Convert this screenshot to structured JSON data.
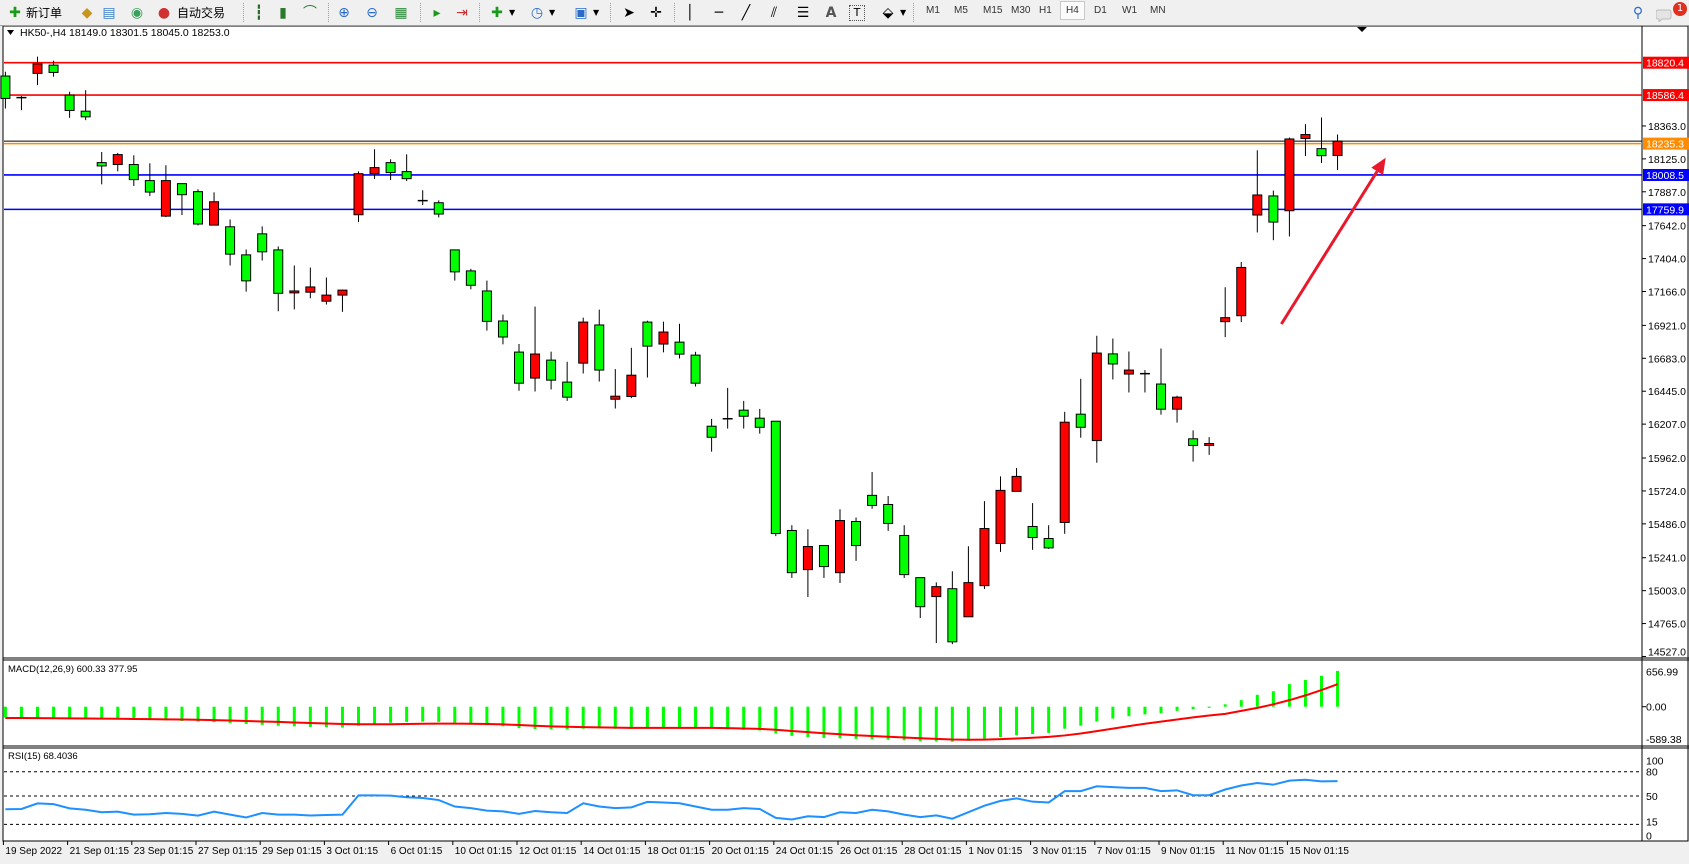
{
  "toolbar": {
    "new_order_label": "新订单",
    "auto_trading_label": "自动交易",
    "icons": [
      "new-order-icon",
      "market-watch-icon",
      "data-window-icon",
      "navigator-icon",
      "auto-trading-icon",
      "bar-chart-icon",
      "candlestick-icon",
      "line-chart-icon",
      "zoom-in-icon",
      "zoom-out-icon",
      "tile-windows-icon",
      "auto-scroll-icon",
      "chart-shift-icon",
      "indicators-icon",
      "periods-icon",
      "templates-icon",
      "cursor-icon",
      "crosshair-icon",
      "vertical-line-icon",
      "horizontal-line-icon",
      "trendline-icon",
      "equidistant-channel-icon",
      "fibonacci-icon",
      "text-icon",
      "text-label-icon",
      "arrows-icon",
      "search-icon",
      "chat-icon"
    ],
    "timeframes": [
      "M1",
      "M5",
      "M15",
      "M30",
      "H1",
      "H4",
      "D1",
      "W1",
      "MN"
    ],
    "active_timeframe": "H4",
    "text_tool_label": "A",
    "notification_count": "1"
  },
  "chart": {
    "header": "HK50-,H4  18149.0 18301.5 18045.0 18253.0",
    "macd_label": "MACD(12,26,9) 600.33 377.95",
    "rsi_label": "RSI(15) 68.4036"
  },
  "chart_data": [
    {
      "type": "candlestick",
      "symbol": "HK50-",
      "timeframe": "H4",
      "ohlc_order": [
        "open",
        "high",
        "low",
        "close"
      ],
      "up_color": "#ff0000",
      "down_color": "#00ff00",
      "candles": [
        [
          18724,
          18755,
          18489,
          18562
        ],
        [
          18568,
          18579,
          18477,
          18565
        ],
        [
          18743,
          18864,
          18658,
          18811
        ],
        [
          18803,
          18835,
          18719,
          18750
        ],
        [
          18586,
          18610,
          18422,
          18475
        ],
        [
          18470,
          18622,
          18405,
          18429
        ],
        [
          18098,
          18175,
          17941,
          18074
        ],
        [
          18084,
          18168,
          18035,
          18156
        ],
        [
          18084,
          18151,
          17929,
          17975
        ],
        [
          17968,
          18093,
          17856,
          17885
        ],
        [
          17711,
          18079,
          17704,
          17968
        ],
        [
          17946,
          17946,
          17719,
          17866
        ],
        [
          17888,
          17905,
          17644,
          17654
        ],
        [
          17646,
          17883,
          17646,
          17815
        ],
        [
          17634,
          17687,
          17354,
          17436
        ],
        [
          17431,
          17470,
          17165,
          17243
        ],
        [
          17583,
          17637,
          17390,
          17453
        ],
        [
          17467,
          17492,
          17023,
          17153
        ],
        [
          17156,
          17354,
          17037,
          17170
        ],
        [
          17161,
          17339,
          17117,
          17199
        ],
        [
          17096,
          17267,
          17072,
          17140
        ],
        [
          17140,
          17180,
          17019,
          17176
        ],
        [
          17721,
          18035,
          17668,
          18018
        ],
        [
          18018,
          18195,
          17980,
          18062
        ],
        [
          18098,
          18122,
          17972,
          18026
        ],
        [
          18033,
          18158,
          17965,
          17982
        ],
        [
          17823,
          17898,
          17791,
          17822
        ],
        [
          17808,
          17825,
          17702,
          17726
        ],
        [
          17467,
          17467,
          17245,
          17308
        ],
        [
          17315,
          17330,
          17182,
          17211
        ],
        [
          17170,
          17245,
          16883,
          16950
        ],
        [
          16953,
          16999,
          16784,
          16837
        ],
        [
          16728,
          16786,
          16448,
          16503
        ],
        [
          16540,
          17057,
          16443,
          16714
        ],
        [
          16670,
          16731,
          16458,
          16525
        ],
        [
          16511,
          16658,
          16375,
          16402
        ],
        [
          16648,
          16977,
          16573,
          16945
        ],
        [
          16924,
          17035,
          16515,
          16598
        ],
        [
          16387,
          16605,
          16320,
          16409
        ],
        [
          16407,
          16759,
          16395,
          16561
        ],
        [
          16945,
          16955,
          16544,
          16771
        ],
        [
          16786,
          16948,
          16726,
          16873
        ],
        [
          16800,
          16933,
          16682,
          16713
        ],
        [
          16706,
          16730,
          16479,
          16503
        ],
        [
          16192,
          16245,
          16008,
          16112
        ],
        [
          16246,
          16469,
          16175,
          16244
        ],
        [
          16308,
          16375,
          16175,
          16264
        ],
        [
          16250,
          16317,
          16138,
          16184
        ],
        [
          16228,
          16228,
          15397,
          15416
        ],
        [
          15438,
          15476,
          15095,
          15133
        ],
        [
          15155,
          15447,
          14957,
          15322
        ],
        [
          15329,
          15329,
          15095,
          15177
        ],
        [
          15133,
          15592,
          15058,
          15510
        ],
        [
          15503,
          15532,
          15218,
          15329
        ],
        [
          15692,
          15861,
          15595,
          15619
        ],
        [
          15626,
          15687,
          15435,
          15489
        ],
        [
          15402,
          15476,
          15095,
          15119
        ],
        [
          15097,
          15097,
          14805,
          14887
        ],
        [
          14960,
          15063,
          14624,
          15032
        ],
        [
          15017,
          15143,
          14616,
          14633
        ],
        [
          14814,
          15324,
          14814,
          15061
        ],
        [
          15039,
          15650,
          15015,
          15452
        ],
        [
          15344,
          15829,
          15283,
          15728
        ],
        [
          15721,
          15890,
          15721,
          15829
        ],
        [
          15467,
          15636,
          15298,
          15387
        ],
        [
          15380,
          15476,
          15305,
          15312
        ],
        [
          15496,
          16296,
          15414,
          16221
        ],
        [
          16279,
          16535,
          16109,
          16184
        ],
        [
          16088,
          16846,
          15928,
          16721
        ],
        [
          16715,
          16826,
          16530,
          16642
        ],
        [
          16569,
          16732,
          16436,
          16598
        ],
        [
          16572,
          16598,
          16436,
          16570
        ],
        [
          16497,
          16754,
          16276,
          16315
        ],
        [
          16315,
          16412,
          16218,
          16402
        ],
        [
          16101,
          16162,
          15936,
          16053
        ],
        [
          16053,
          16113,
          15985,
          16067
        ],
        [
          16948,
          17197,
          16836,
          16977
        ],
        [
          16991,
          17379,
          16945,
          17340
        ],
        [
          17719,
          18187,
          17593,
          17864
        ],
        [
          17857,
          17896,
          17537,
          17668
        ],
        [
          17750,
          18279,
          17564,
          18269
        ],
        [
          18272,
          18376,
          18146,
          18301
        ],
        [
          18199,
          18424,
          18095,
          18148
        ],
        [
          18149,
          18301.5,
          18045,
          18253
        ]
      ],
      "ylim": [
        14527.0,
        18820.4
      ],
      "y_ticks": [
        "18363.0",
        "18125.0",
        "17887.0",
        "17642.0",
        "17404.0",
        "17166.0",
        "16921.0",
        "16683.0",
        "16445.0",
        "16207.0",
        "15962.0",
        "15724.0",
        "15486.0",
        "15241.0",
        "15003.0",
        "14765.0",
        "14527.0"
      ],
      "x_ticks": [
        {
          "index": 0,
          "label": "19 Sep 2022"
        },
        {
          "index": 4,
          "label": "21 Sep 01:15"
        },
        {
          "index": 8,
          "label": "23 Sep 01:15"
        },
        {
          "index": 12,
          "label": "27 Sep 01:15"
        },
        {
          "index": 16,
          "label": "29 Sep 01:15"
        },
        {
          "index": 20,
          "label": "3 Oct 01:15"
        },
        {
          "index": 24,
          "label": "6 Oct 01:15"
        },
        {
          "index": 28,
          "label": "10 Oct 01:15"
        },
        {
          "index": 32,
          "label": "12 Oct 01:15"
        },
        {
          "index": 36,
          "label": "14 Oct 01:15"
        },
        {
          "index": 40,
          "label": "18 Oct 01:15"
        },
        {
          "index": 44,
          "label": "20 Oct 01:15"
        },
        {
          "index": 48,
          "label": "24 Oct 01:15"
        },
        {
          "index": 52,
          "label": "26 Oct 01:15"
        },
        {
          "index": 56,
          "label": "28 Oct 01:15"
        },
        {
          "index": 60,
          "label": "1 Nov 01:15"
        },
        {
          "index": 64,
          "label": "3 Nov 01:15"
        },
        {
          "index": 68,
          "label": "7 Nov 01:15"
        },
        {
          "index": 72,
          "label": "9 Nov 01:15"
        },
        {
          "index": 76,
          "label": "11 Nov 01:15"
        },
        {
          "index": 80,
          "label": "15 Nov 01:15"
        }
      ],
      "horizontal_lines": [
        {
          "price": 18820.4,
          "label": "18820.4",
          "color": "#ff0000"
        },
        {
          "price": 18586.4,
          "label": "18586.4",
          "color": "#ff0000"
        },
        {
          "price": 18253.0,
          "label": "",
          "color": "#000000"
        },
        {
          "price": 18235.3,
          "label": "18235.3",
          "color": "#ff8c00"
        },
        {
          "price": 18008.5,
          "label": "18008.5",
          "color": "#0000ff"
        },
        {
          "price": 17759.9,
          "label": "17759.9",
          "color": "#0000ff"
        }
      ],
      "arrow": {
        "from": {
          "index": 79.5,
          "price": 16931
        },
        "to": {
          "index": 86.0,
          "price": 18133
        },
        "color": "#e8192c"
      },
      "grid": false
    },
    {
      "type": "bar",
      "indicator": "MACD(12,26,9)",
      "histogram_color": "#00ff00",
      "signal_color": "#ff0000",
      "ylim": [
        -589.38,
        656.99
      ],
      "y_ticks": [
        "656.99",
        "0.00",
        "-589.38"
      ],
      "macd": [
        -180,
        -185,
        -190,
        -190,
        -200,
        -205,
        -210,
        -215,
        -220,
        -225,
        -230,
        -240,
        -250,
        -260,
        -275,
        -290,
        -305,
        -320,
        -330,
        -340,
        -345,
        -350,
        -320,
        -290,
        -270,
        -255,
        -250,
        -255,
        -270,
        -290,
        -310,
        -330,
        -360,
        -375,
        -380,
        -385,
        -370,
        -365,
        -370,
        -370,
        -360,
        -350,
        -345,
        -350,
        -360,
        -380,
        -390,
        -400,
        -450,
        -490,
        -510,
        -525,
        -530,
        -540,
        -545,
        -555,
        -565,
        -580,
        -585,
        -589,
        -570,
        -540,
        -510,
        -480,
        -460,
        -440,
        -370,
        -320,
        -250,
        -200,
        -160,
        -130,
        -110,
        -70,
        -40,
        -20,
        40,
        110,
        200,
        260,
        380,
        450,
        520,
        600.33
      ],
      "signal": [
        -190,
        -190,
        -192,
        -194,
        -196,
        -198,
        -200,
        -203,
        -206,
        -209,
        -212,
        -216,
        -220,
        -226,
        -232,
        -240,
        -248,
        -256,
        -265,
        -274,
        -282,
        -290,
        -296,
        -295,
        -294,
        -290,
        -287,
        -285,
        -285,
        -286,
        -290,
        -298,
        -308,
        -320,
        -330,
        -338,
        -344,
        -348,
        -352,
        -355,
        -356,
        -356,
        -355,
        -355,
        -356,
        -360,
        -366,
        -372,
        -388,
        -408,
        -428,
        -447,
        -464,
        -479,
        -492,
        -505,
        -517,
        -530,
        -541,
        -551,
        -555,
        -553,
        -546,
        -535,
        -522,
        -508,
        -483,
        -450,
        -410,
        -368,
        -326,
        -287,
        -251,
        -215,
        -180,
        -148,
        -120,
        -70,
        -20,
        40,
        110,
        190,
        280,
        377.95
      ]
    },
    {
      "type": "line",
      "indicator": "RSI(15)",
      "color": "#1e90ff",
      "ylim": [
        0,
        100
      ],
      "levels": [
        80,
        50,
        15
      ],
      "y_ticks": [
        "100",
        "80",
        "50",
        "15",
        "0"
      ],
      "values": [
        33.6,
        34,
        40.9,
        40,
        34.7,
        33,
        30,
        30.7,
        27,
        27.5,
        29,
        28,
        25.8,
        30.7,
        27,
        23.5,
        29,
        27,
        27,
        26,
        26.5,
        27,
        50.8,
        50.8,
        50.5,
        48.5,
        47.5,
        45,
        37,
        35,
        32,
        31,
        28,
        31.5,
        30,
        29,
        41,
        37,
        35,
        36,
        42.7,
        42,
        41,
        37,
        33,
        33,
        35,
        34,
        23,
        21,
        25,
        24,
        30,
        29,
        33,
        31,
        27,
        24,
        26,
        22,
        30,
        38,
        44,
        47,
        43,
        42,
        56,
        56,
        62,
        61,
        60,
        60,
        56,
        57,
        51,
        51,
        58,
        63,
        66,
        64,
        69,
        70,
        68,
        68.4036
      ]
    }
  ]
}
